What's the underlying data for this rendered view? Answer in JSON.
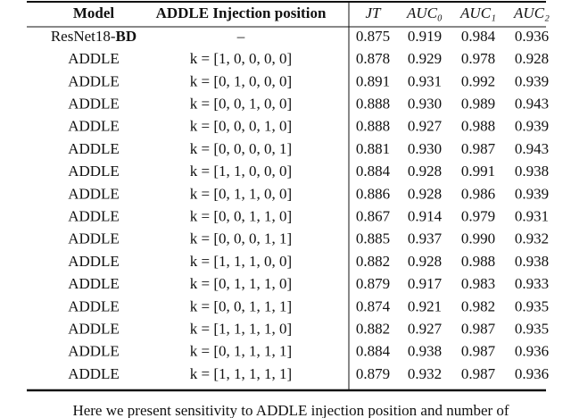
{
  "table": {
    "header": [
      "Model",
      "ADDLE Injection position",
      "JT",
      "AUC₀",
      "AUC₁",
      "AUC₂"
    ],
    "rows": [
      {
        "model": "ResNet18-",
        "model_bold": "BD",
        "position": "–",
        "values": [
          "0.875",
          "0.919",
          "0.984",
          "0.936"
        ]
      },
      {
        "model": "ADDLE",
        "position": "k = [1, 0, 0, 0, 0]",
        "values": [
          "0.878",
          "0.929",
          "0.978",
          "0.928"
        ]
      },
      {
        "model": "ADDLE",
        "position": "k = [0, 1, 0, 0, 0]",
        "values": [
          "0.891",
          "0.931",
          "0.992",
          "0.939"
        ]
      },
      {
        "model": "ADDLE",
        "position": "k = [0, 0, 1, 0, 0]",
        "values": [
          "0.888",
          "0.930",
          "0.989",
          "0.943"
        ]
      },
      {
        "model": "ADDLE",
        "position": "k = [0, 0, 0, 1, 0]",
        "values": [
          "0.888",
          "0.927",
          "0.988",
          "0.939"
        ]
      },
      {
        "model": "ADDLE",
        "position": "k = [0, 0, 0, 0, 1]",
        "values": [
          "0.881",
          "0.930",
          "0.987",
          "0.943"
        ]
      },
      {
        "model": "ADDLE",
        "position": "k = [1, 1, 0, 0, 0]",
        "values": [
          "0.884",
          "0.928",
          "0.991",
          "0.938"
        ]
      },
      {
        "model": "ADDLE",
        "position": "k = [0, 1, 1, 0, 0]",
        "values": [
          "0.886",
          "0.928",
          "0.986",
          "0.939"
        ]
      },
      {
        "model": "ADDLE",
        "position": "k = [0, 0, 1, 1, 0]",
        "values": [
          "0.867",
          "0.914",
          "0.979",
          "0.931"
        ]
      },
      {
        "model": "ADDLE",
        "position": "k = [0, 0, 0, 1, 1]",
        "values": [
          "0.885",
          "0.937",
          "0.990",
          "0.932"
        ]
      },
      {
        "model": "ADDLE",
        "position": "k = [1, 1, 1, 0, 0]",
        "values": [
          "0.882",
          "0.928",
          "0.988",
          "0.938"
        ]
      },
      {
        "model": "ADDLE",
        "position": "k = [0, 1, 1, 1, 0]",
        "values": [
          "0.879",
          "0.917",
          "0.983",
          "0.933"
        ]
      },
      {
        "model": "ADDLE",
        "position": "k = [0, 0, 1, 1, 1]",
        "values": [
          "0.874",
          "0.921",
          "0.982",
          "0.935"
        ]
      },
      {
        "model": "ADDLE",
        "position": "k = [1, 1, 1, 1, 0]",
        "values": [
          "0.882",
          "0.927",
          "0.987",
          "0.935"
        ]
      },
      {
        "model": "ADDLE",
        "position": "k = [0, 1, 1, 1, 1]",
        "values": [
          "0.884",
          "0.938",
          "0.987",
          "0.936"
        ]
      },
      {
        "model": "ADDLE",
        "position": "k = [1, 1, 1, 1, 1]",
        "values": [
          "0.879",
          "0.932",
          "0.987",
          "0.936"
        ]
      }
    ]
  },
  "body_text": "Here we present sensitivity to ADDLE injection position and number of"
}
